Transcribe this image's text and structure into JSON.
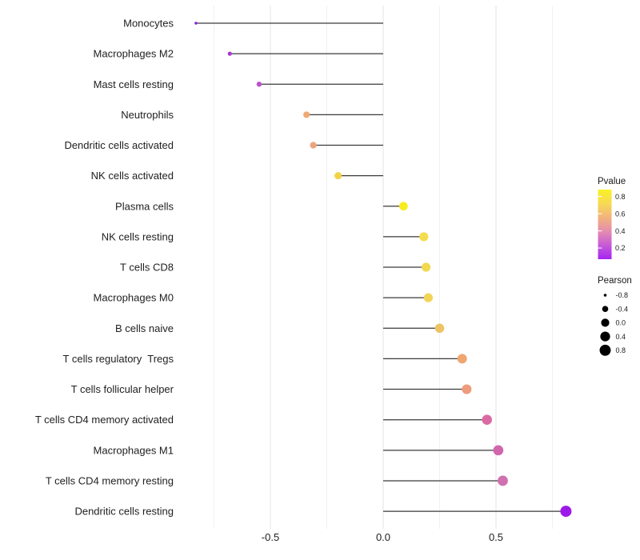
{
  "chart_data": {
    "type": "lollipop",
    "title": "",
    "xlabel": "",
    "ylabel": "",
    "x_axis": {
      "ticks": [
        -0.5,
        0.0,
        0.5
      ],
      "tick_labels": [
        "-0.5",
        "0.0",
        "0.5"
      ],
      "range": [
        -0.91,
        0.89
      ]
    },
    "grid": {
      "major_x": [
        -0.5,
        0.0,
        0.5
      ],
      "minor_x": [
        -0.75,
        -0.25,
        0.25,
        0.75
      ],
      "horizontal": false
    },
    "baseline": 0.0,
    "points": [
      {
        "label": "Monocytes",
        "pearson": -0.83,
        "pvalue_approx": 0.07,
        "color": "#8a1edd"
      },
      {
        "label": "Macrophages M2",
        "pearson": -0.68,
        "pvalue_approx": 0.18,
        "color": "#a935d5"
      },
      {
        "label": "Mast cells resting",
        "pearson": -0.55,
        "pvalue_approx": 0.27,
        "color": "#bc52c9"
      },
      {
        "label": "Neutrophils",
        "pearson": -0.34,
        "pvalue_approx": 0.55,
        "color": "#f0a974"
      },
      {
        "label": "Dendritic cells activated",
        "pearson": -0.31,
        "pvalue_approx": 0.53,
        "color": "#eda47c"
      },
      {
        "label": "NK cells activated",
        "pearson": -0.2,
        "pvalue_approx": 0.72,
        "color": "#f3d245"
      },
      {
        "label": "Plasma cells",
        "pearson": 0.09,
        "pvalue_approx": 0.88,
        "color": "#f8ec1e"
      },
      {
        "label": "NK cells resting",
        "pearson": 0.18,
        "pvalue_approx": 0.78,
        "color": "#f3dc4d"
      },
      {
        "label": "T cells CD8",
        "pearson": 0.19,
        "pvalue_approx": 0.77,
        "color": "#f2d850"
      },
      {
        "label": "Macrophages M0",
        "pearson": 0.2,
        "pvalue_approx": 0.76,
        "color": "#f1d458"
      },
      {
        "label": "B cells naive",
        "pearson": 0.25,
        "pvalue_approx": 0.65,
        "color": "#eec366"
      },
      {
        "label": "T cells regulatory  Tregs",
        "pearson": 0.35,
        "pvalue_approx": 0.55,
        "color": "#efa671"
      },
      {
        "label": "T cells follicular helper",
        "pearson": 0.37,
        "pvalue_approx": 0.5,
        "color": "#ed9c7c"
      },
      {
        "label": "T cells CD4 memory activated",
        "pearson": 0.46,
        "pvalue_approx": 0.38,
        "color": "#da6ba2"
      },
      {
        "label": "Macrophages M1",
        "pearson": 0.51,
        "pvalue_approx": 0.35,
        "color": "#d166ad"
      },
      {
        "label": "T cells CD4 memory resting",
        "pearson": 0.53,
        "pvalue_approx": 0.36,
        "color": "#cf71b1"
      },
      {
        "label": "Dendritic cells resting",
        "pearson": 0.81,
        "pvalue_approx": 0.1,
        "color": "#9c1ae9"
      }
    ],
    "legend_position": "right",
    "legends": {
      "pvalue": {
        "title": "Pvalue",
        "type": "colorbar",
        "tick_labels": [
          "0.8",
          "0.6",
          "0.4",
          "0.2"
        ],
        "tick_values": [
          0.8,
          0.6,
          0.4,
          0.2
        ],
        "gradient_top_to_bottom": [
          "#f9f125",
          "#f7da55",
          "#f2b37c",
          "#e58cb0",
          "#c65ad8",
          "#a524f2"
        ],
        "value_range_top_to_bottom": [
          0.88,
          0.07
        ]
      },
      "pearson": {
        "title": "Pearson",
        "type": "size",
        "entries": [
          {
            "label": "-0.8",
            "value": -0.8
          },
          {
            "label": "-0.4",
            "value": -0.4
          },
          {
            "label": "0.0",
            "value": 0.0
          },
          {
            "label": "0.4",
            "value": 0.4
          },
          {
            "label": "0.8",
            "value": 0.8
          }
        ],
        "dot_color": "#000000"
      }
    },
    "colors": {
      "background": "#ffffff",
      "segment": "#3a3a3a",
      "axis_text": "#212121",
      "grid_major": "#e3e3e3",
      "grid_minor": "#f1f1f1"
    }
  }
}
